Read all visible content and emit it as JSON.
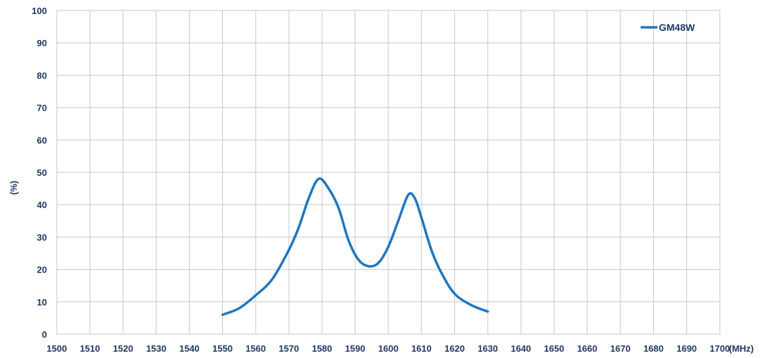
{
  "chart_data": {
    "type": "line",
    "xlabel": "(MHz)",
    "ylabel": "(%)",
    "xlim": [
      1500,
      1700
    ],
    "ylim": [
      0,
      100
    ],
    "x_ticks": [
      1500,
      1510,
      1520,
      1530,
      1540,
      1550,
      1560,
      1570,
      1580,
      1590,
      1600,
      1610,
      1620,
      1630,
      1640,
      1650,
      1660,
      1670,
      1680,
      1690,
      1700
    ],
    "y_ticks": [
      0,
      10,
      20,
      30,
      40,
      50,
      60,
      70,
      80,
      90,
      100
    ],
    "grid": true,
    "legend_position": "top-right",
    "series": [
      {
        "name": "GM48W",
        "color": "#1f77c0",
        "x": [
          1550,
          1555,
          1560,
          1565,
          1570,
          1573,
          1576,
          1579,
          1582,
          1585,
          1588,
          1591,
          1594,
          1597,
          1600,
          1603,
          1606,
          1608,
          1610,
          1613,
          1616,
          1620,
          1625,
          1630
        ],
        "y": [
          6,
          8,
          12,
          17,
          26,
          33,
          42,
          48,
          45,
          39,
          29,
          23,
          21,
          22,
          27,
          35,
          43,
          42,
          36,
          26,
          19,
          12.5,
          9,
          7
        ]
      }
    ]
  }
}
